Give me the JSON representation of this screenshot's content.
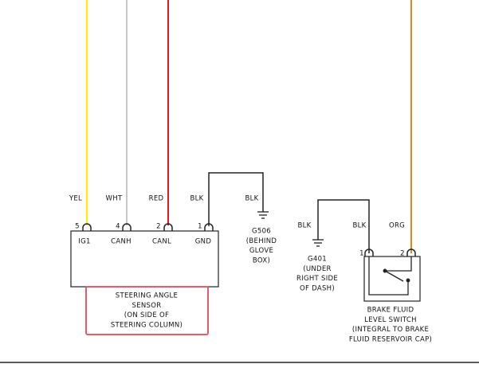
{
  "sensor": {
    "pins": [
      {
        "wire": "YEL",
        "number": "5",
        "name": "IG1"
      },
      {
        "wire": "WHT",
        "number": "4",
        "name": "CANH"
      },
      {
        "wire": "RED",
        "number": "2",
        "name": "CANL"
      },
      {
        "wire": "BLK",
        "number": "1",
        "name": "GND"
      }
    ],
    "label": [
      "STEERING ANGLE",
      "SENSOR",
      "(ON SIDE OF",
      "STEERING COLUMN)"
    ]
  },
  "ground_g506": {
    "wire": "BLK",
    "label": [
      "G506",
      "(BEHIND",
      "GLOVE",
      "BOX)"
    ]
  },
  "ground_g401": {
    "wire": "BLK",
    "label": [
      "G401",
      "(UNDER",
      "RIGHT SIDE",
      "OF DASH)"
    ]
  },
  "switch": {
    "pins": [
      {
        "wire": "BLK",
        "number": "1"
      },
      {
        "wire": "ORG",
        "number": "2"
      }
    ],
    "label": [
      "BRAKE FLUID",
      "LEVEL SWITCH",
      "(INTEGRAL TO BRAKE",
      "FLUID RESERVOIR CAP)"
    ]
  }
}
